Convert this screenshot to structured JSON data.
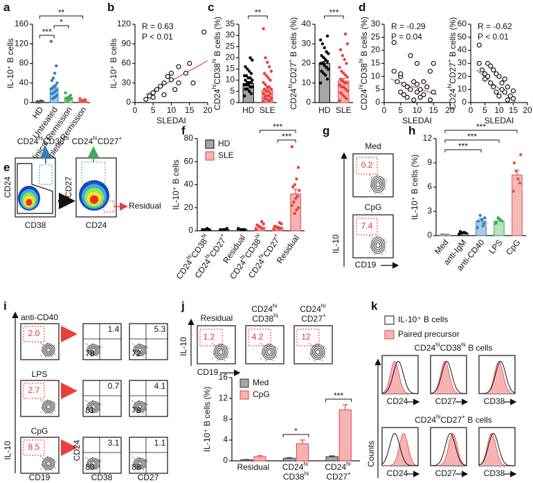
{
  "panel_labels": [
    "a",
    "b",
    "c",
    "d",
    "e",
    "f",
    "g",
    "h",
    "i",
    "j",
    "k"
  ],
  "chart_data": [
    {
      "type": "bar",
      "ylabel": "IL-10⁺ B cells",
      "categories": [
        "HD",
        "Untreated",
        "Clinical Remission",
        "Complete Remission"
      ],
      "colors": [
        "#d9d9d9",
        "#a9cbe9",
        "#b6e2bf",
        "#f5b9b5"
      ],
      "point_colors": [
        "#555555",
        "#2f7fc4",
        "#3cad5a",
        "#e4524d"
      ],
      "values": [
        2,
        30,
        10,
        4
      ],
      "errors": [
        0.5,
        5,
        2,
        1
      ],
      "points": [
        [
          1,
          2,
          3,
          1,
          2,
          2,
          3,
          1
        ],
        [
          125,
          75,
          60,
          50,
          45,
          40,
          35,
          32,
          30,
          28,
          25,
          22,
          20,
          18,
          15,
          12,
          10,
          8
        ],
        [
          20,
          15,
          12,
          10,
          9,
          8,
          7,
          5,
          4
        ],
        [
          8,
          6,
          5,
          4,
          3,
          3,
          2,
          2
        ]
      ],
      "comparisons": [
        {
          "from": 0,
          "to": 3,
          "label": "**"
        },
        {
          "from": 1,
          "to": 2,
          "label": "*"
        },
        {
          "from": 0,
          "to": 1,
          "label": "***"
        }
      ],
      "ylim": [
        0,
        160
      ],
      "yticks": [
        0,
        40,
        80,
        120,
        160
      ]
    },
    {
      "type": "scatter",
      "xlabel": "SLEDAI",
      "ylabel": "IL-10⁺ B cells",
      "annotations": [
        "R = 0.63",
        "P < 0.01"
      ],
      "x": [
        3,
        4,
        5,
        5,
        6,
        7,
        8,
        8,
        9,
        10,
        10,
        11,
        12,
        12,
        14,
        15,
        16,
        19
      ],
      "y": [
        5,
        10,
        8,
        15,
        20,
        25,
        30,
        12,
        40,
        35,
        45,
        20,
        55,
        30,
        45,
        60,
        30,
        108
      ],
      "trend": {
        "x": [
          3,
          20
        ],
        "y": [
          12,
          64
        ],
        "color": "#e4524d"
      },
      "xlim": [
        0,
        20
      ],
      "xticks": [
        0,
        5,
        10,
        15,
        20
      ],
      "ylim": [
        0,
        120
      ],
      "yticks": [
        0,
        30,
        60,
        90,
        120
      ]
    },
    {
      "type": "bar",
      "ylabel": "CD24hiCD38hi B cells (%)",
      "categories": [
        "HD",
        "SLE"
      ],
      "colors": [
        "#a6a6a6",
        "#f6b3b3"
      ],
      "point_colors": [
        "#000000",
        "#e8403f"
      ],
      "values": [
        8.5,
        5.5
      ],
      "errors": [
        0.6,
        0.7
      ],
      "points": [
        [
          3,
          4,
          5,
          6,
          6,
          7,
          7,
          8,
          8,
          8,
          9,
          9,
          9,
          10,
          10,
          11,
          11,
          12,
          12,
          13,
          14,
          15,
          16,
          19,
          20
        ],
        [
          0.5,
          1,
          1,
          1.5,
          2,
          2,
          3,
          3,
          3,
          4,
          4,
          5,
          5,
          6,
          6,
          7,
          7,
          8,
          9,
          10,
          11,
          12,
          13,
          14,
          16,
          18,
          20,
          33
        ]
      ],
      "comparisons": [
        {
          "from": 0,
          "to": 1,
          "label": "**"
        }
      ],
      "ylim": [
        0,
        35
      ],
      "yticks": [
        0,
        5,
        10,
        15,
        20,
        25,
        30,
        35
      ]
    },
    {
      "type": "bar",
      "ylabel": "CD24hiCD27+ B cells (%)",
      "categories": [
        "HD",
        "SLE"
      ],
      "colors": [
        "#a6a6a6",
        "#f6b3b3"
      ],
      "point_colors": [
        "#000000",
        "#e8403f"
      ],
      "values": [
        20,
        11
      ],
      "errors": [
        1,
        1.2
      ],
      "points": [
        [
          10,
          12,
          14,
          15,
          16,
          17,
          18,
          19,
          20,
          20,
          21,
          22,
          23,
          24,
          25,
          26,
          28,
          30,
          32,
          34
        ],
        [
          1,
          2,
          3,
          4,
          5,
          6,
          7,
          8,
          8,
          9,
          10,
          10,
          11,
          12,
          13,
          14,
          15,
          16,
          18,
          20,
          22,
          24,
          27,
          30,
          35
        ]
      ],
      "comparisons": [
        {
          "from": 0,
          "to": 1,
          "label": "***"
        }
      ],
      "ylim": [
        0,
        40
      ],
      "yticks": [
        0,
        10,
        20,
        30,
        40
      ]
    },
    {
      "type": "scatter",
      "xlabel": "SLEDAI",
      "ylabel": "CD24hiCD38hi B cells (%)",
      "annotations": [
        "R = -0.29",
        "P = 0.04"
      ],
      "x": [
        3,
        3,
        4,
        5,
        5,
        5,
        6,
        6,
        7,
        7,
        8,
        8,
        9,
        9,
        10,
        10,
        10,
        11,
        11,
        12,
        12,
        13,
        14,
        14,
        15,
        15
      ],
      "y": [
        23,
        12,
        8,
        10,
        11,
        4,
        7,
        3,
        2,
        6,
        18,
        5,
        8,
        1,
        15,
        4,
        7,
        2,
        5,
        8,
        3,
        6,
        12,
        1,
        15,
        4
      ],
      "trend": {
        "x": [
          2,
          16
        ],
        "y": [
          9,
          3
        ],
        "color": "#e4524d"
      },
      "xlim": [
        0,
        20
      ],
      "xticks": [
        0,
        5,
        10,
        15,
        20
      ],
      "ylim": [
        0,
        30
      ],
      "yticks": [
        0,
        5,
        10,
        15,
        20,
        25,
        30
      ]
    },
    {
      "type": "scatter",
      "xlabel": "SLEDAI",
      "ylabel": "CD24hiCD27+ B cells (%)",
      "annotations": [
        "R = -0.62",
        "P < 0.01"
      ],
      "x": [
        3,
        3,
        4,
        5,
        5,
        6,
        6,
        7,
        7,
        8,
        8,
        9,
        9,
        10,
        10,
        11,
        11,
        12,
        12,
        13,
        13,
        14,
        15,
        15
      ],
      "y": [
        44,
        30,
        25,
        22,
        18,
        30,
        20,
        28,
        15,
        25,
        12,
        22,
        8,
        20,
        5,
        15,
        10,
        8,
        18,
        12,
        2,
        5,
        3,
        9
      ],
      "trend": {
        "x": [
          2,
          16
        ],
        "y": [
          25,
          0
        ],
        "color": "#e4524d"
      },
      "xlim": [
        0,
        20
      ],
      "xticks": [
        0,
        5,
        10,
        15,
        20
      ],
      "ylim": [
        0,
        60
      ],
      "yticks": [
        0,
        10,
        20,
        30,
        40,
        50,
        60
      ]
    },
    {
      "type": "bar",
      "ylabel": "IL-10⁺ B cells",
      "legend": "upper left",
      "categories": [
        "CD24hiCD38hi",
        "CD24hiCD27+",
        "Residual",
        "CD24hiCD38hi",
        "CD24hiCD27+",
        "Residual"
      ],
      "series": [
        {
          "name": "HD",
          "color": "#a6a6a6",
          "point_color": "#000000",
          "values": [
            1,
            1,
            1,
            null,
            null,
            null
          ],
          "errors": [
            0.3,
            0.3,
            0.3,
            null,
            null,
            null
          ],
          "points": [
            [
              1,
              1,
              2,
              1
            ],
            [
              1,
              2,
              1,
              1
            ],
            [
              2,
              1,
              1,
              1
            ],
            null,
            null,
            null
          ]
        },
        {
          "name": "SLE",
          "color": "#f6b3b3",
          "point_color": "#e8403f",
          "values": [
            null,
            null,
            null,
            3,
            3,
            32
          ],
          "errors": [
            null,
            null,
            null,
            0.8,
            0.8,
            4
          ],
          "points": [
            null,
            null,
            null,
            [
              1,
              2,
              3,
              4,
              5,
              6,
              8
            ],
            [
              1,
              2,
              2,
              3,
              4,
              6,
              7
            ],
            [
              73,
              55,
              45,
              40,
              38,
              35,
              30,
              28,
              25,
              22,
              20,
              18,
              15
            ]
          ]
        }
      ],
      "comparisons": [
        {
          "from": 3,
          "to": 5,
          "label": "***"
        },
        {
          "from": 4,
          "to": 5,
          "label": "***"
        }
      ],
      "ylim": [
        0,
        80
      ],
      "yticks": [
        0,
        20,
        40,
        60,
        80
      ]
    },
    {
      "type": "bar",
      "ylabel": "IL-10⁺ B cells (%)",
      "categories": [
        "Med",
        "anti-IgM",
        "anti-CD40",
        "LPS",
        "CpG"
      ],
      "colors": [
        "#e0e0e0",
        "#cccccc",
        "#a9cbe9",
        "#b6e2bf",
        "#f5b9b5"
      ],
      "point_colors": [
        "#9a9a9a",
        "#000000",
        "#2f7fc4",
        "#3cad5a",
        "#e4524d"
      ],
      "values": [
        0.1,
        0.3,
        1.8,
        1.8,
        7.5
      ],
      "errors": [
        0.05,
        0.1,
        0.3,
        0.2,
        0.6
      ],
      "points": [
        [
          0.1,
          0.1,
          0.05,
          0.1,
          0.1
        ],
        [
          0.2,
          0.3,
          0.4,
          0.3,
          0.5
        ],
        [
          1,
          1.5,
          2,
          2.5,
          1.8,
          2.2,
          1.2
        ],
        [
          1.5,
          1.8,
          2,
          2.2,
          1.6
        ],
        [
          5.5,
          6.5,
          7,
          8,
          9,
          10
        ]
      ],
      "comparisons": [
        {
          "from": 0,
          "to": 4,
          "label": "***"
        },
        {
          "from": 0,
          "to": 3,
          "label": "***"
        },
        {
          "from": 0,
          "to": 2,
          "label": "***"
        }
      ],
      "ylim": [
        0,
        12
      ],
      "yticks": [
        0,
        3,
        6,
        9,
        12
      ]
    },
    {
      "type": "bar",
      "ylabel": "IL-10⁺ B cells (%)",
      "legend": "upper left",
      "categories": [
        "Residual",
        "CD24hi CD38hi",
        "CD24hi CD27+"
      ],
      "series": [
        {
          "name": "Med",
          "color": "#a6a6a6",
          "point_color": "#333333",
          "values": [
            0.2,
            0.5,
            0.8
          ],
          "errors": [
            0.05,
            0.1,
            0.15
          ]
        },
        {
          "name": "CpG",
          "color": "#f6b3b3",
          "point_color": "#e8403f",
          "values": [
            0.8,
            3.3,
            9.8
          ],
          "errors": [
            0.2,
            0.7,
            1
          ]
        }
      ],
      "comparisons": [
        {
          "category": 1,
          "label": "*"
        },
        {
          "category": 2,
          "label": "***"
        }
      ],
      "ylim": [
        0,
        16
      ],
      "yticks": [
        0,
        4,
        8,
        12,
        16
      ]
    }
  ],
  "flow_e": {
    "gate_labels": [
      "CD24hiCD38hi",
      "CD24hiCD27+"
    ],
    "xlabels": [
      "CD38",
      "CD24"
    ],
    "ylabels": [
      "CD24",
      "CD27"
    ],
    "residual": "Residual"
  },
  "flow_g": {
    "conditions": [
      "Med",
      "CpG"
    ],
    "gates": [
      "0.2",
      "7.4"
    ],
    "xlabel": "CD19",
    "ylabel": "IL-10"
  },
  "flow_i": {
    "conditions": [
      "anti-CD40",
      "LPS",
      "CpG"
    ],
    "gates": [
      "2.0",
      "2.7",
      "8.5"
    ],
    "quadrants": [
      [
        [
          "1.4",
          "78"
        ],
        [
          "5.3",
          "72"
        ]
      ],
      [
        [
          "0.7",
          "81"
        ],
        [
          "4.1",
          "78"
        ]
      ],
      [
        [
          "3.1",
          "80"
        ],
        [
          "1.1",
          "88"
        ]
      ]
    ],
    "xlabels": [
      "CD19",
      "CD38",
      "CD27"
    ],
    "ylabels": [
      "IL-10",
      "CD24"
    ]
  },
  "flow_j": {
    "conditions": [
      "Residual",
      "CD24hi CD38hi",
      "CD24hi CD27+"
    ],
    "gates": [
      "1.2",
      "4.2",
      "12"
    ],
    "xlabel": "CD19",
    "ylabel": "IL-10"
  },
  "hist_k": {
    "legend": [
      "IL-10⁺ B cells",
      "Paired precursor"
    ],
    "groups": [
      "CD24hiCD38hi B cells",
      "CD24hiCD27+ B cells"
    ],
    "markers": [
      "CD24",
      "CD27",
      "CD38"
    ],
    "ylabel": "Counts"
  }
}
